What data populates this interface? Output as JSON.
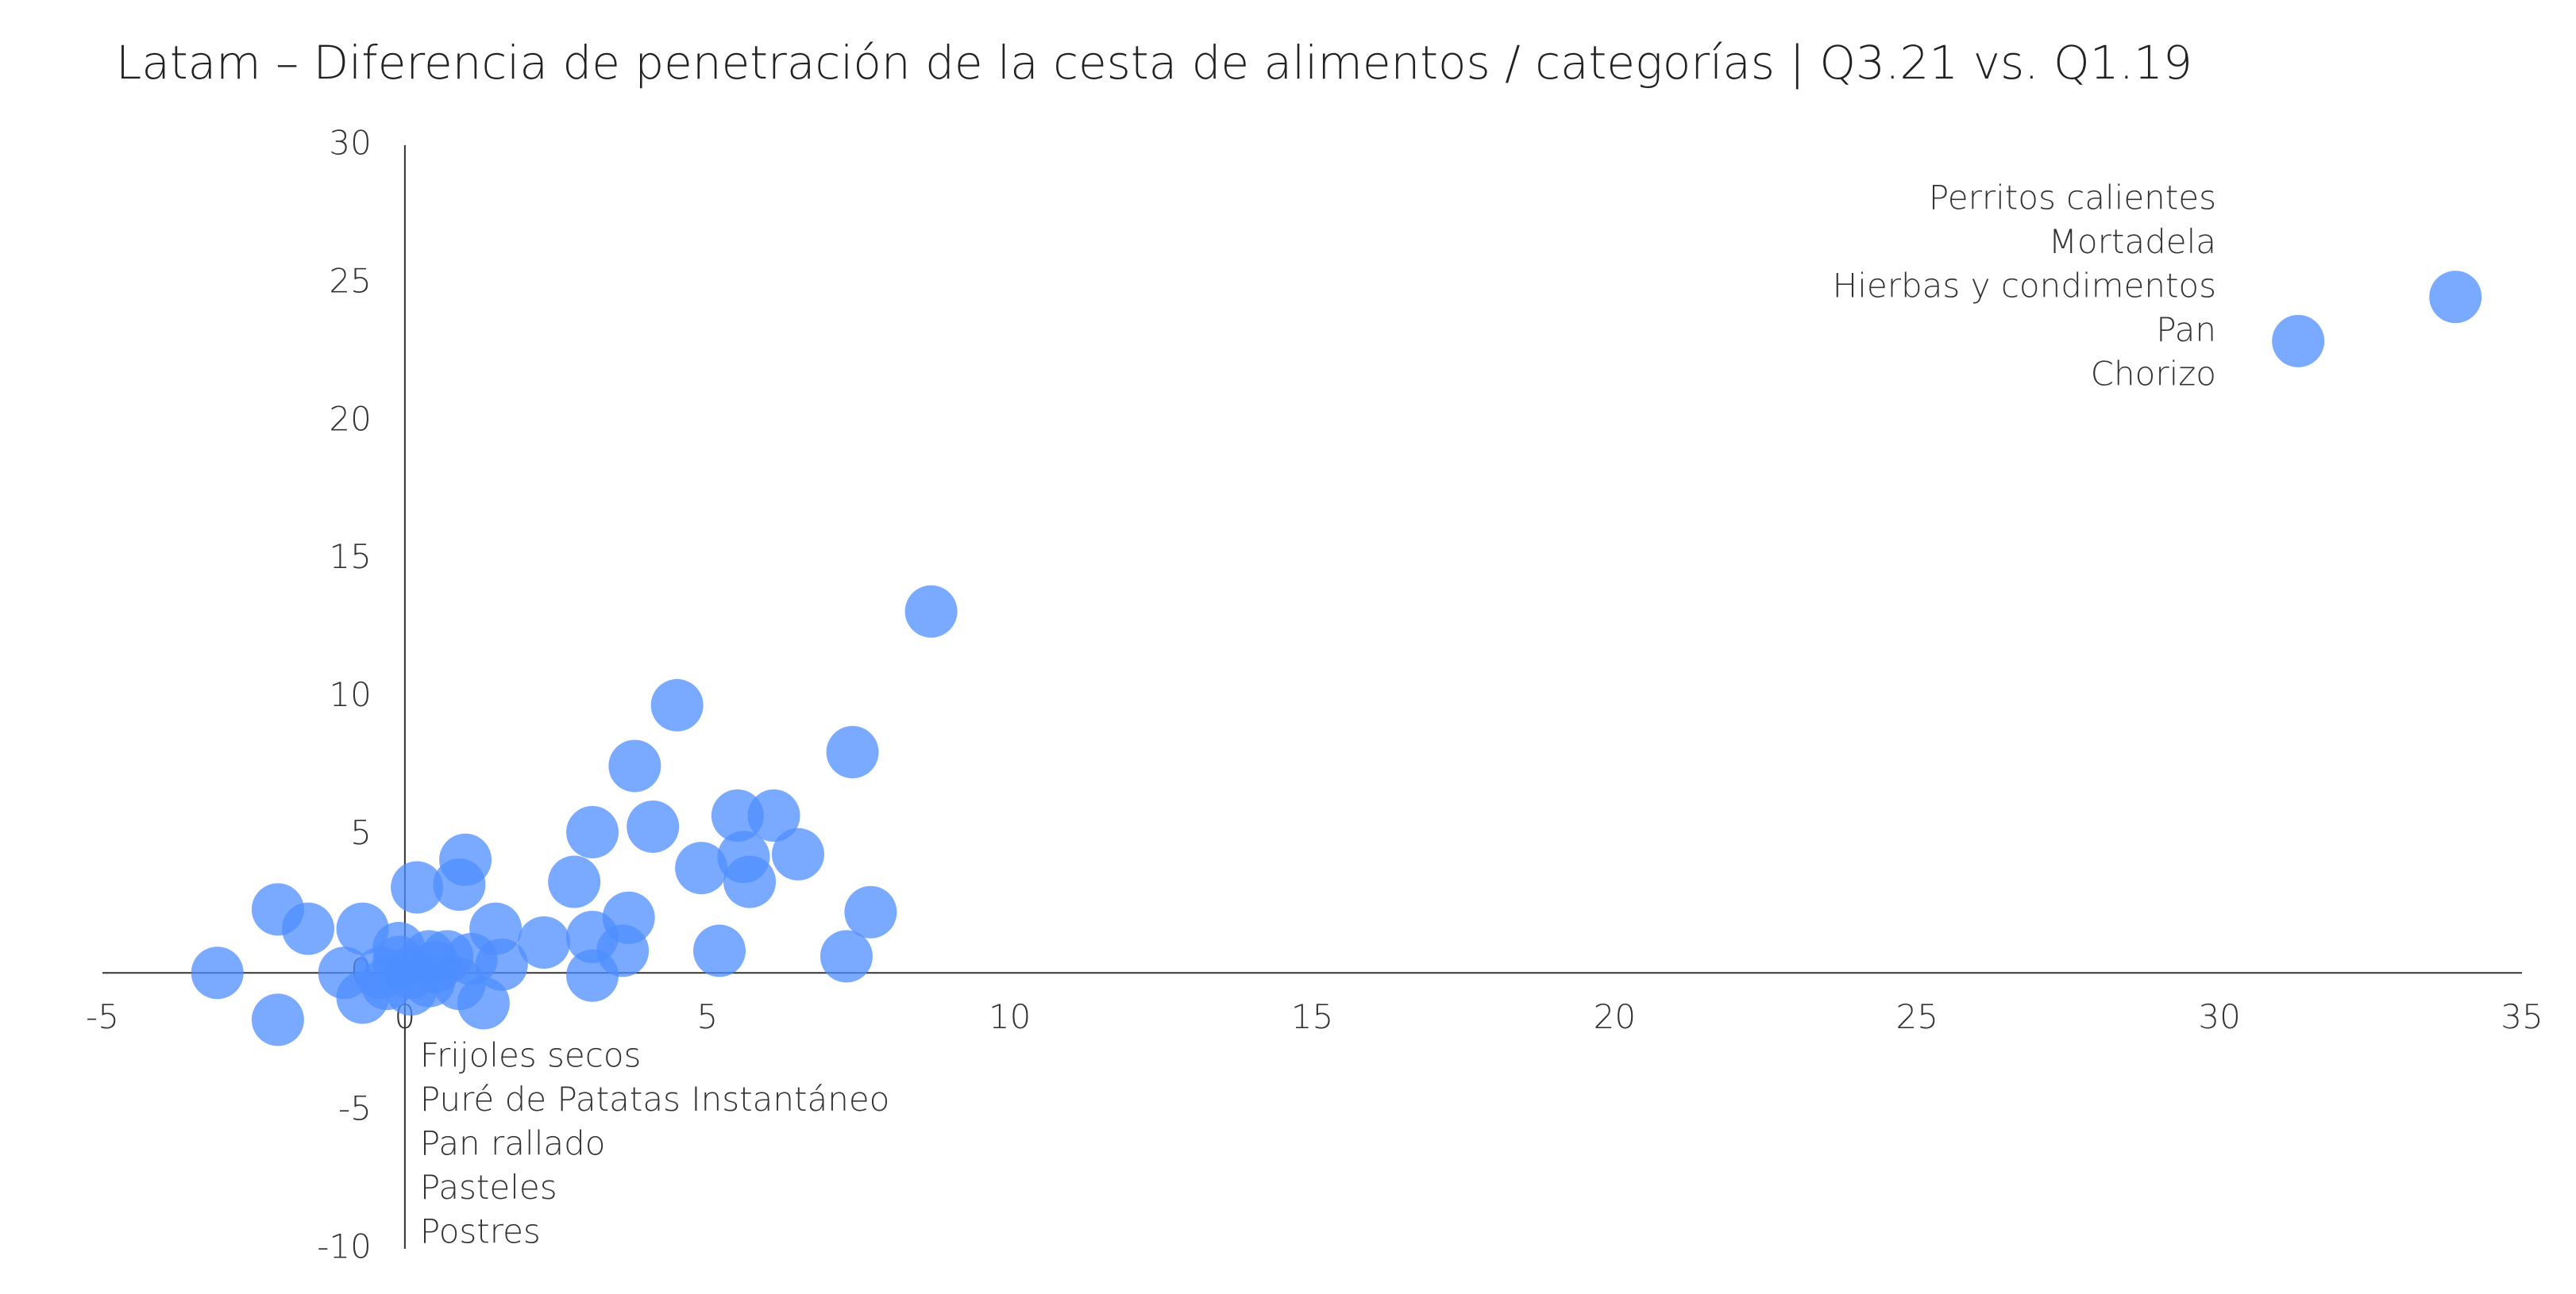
{
  "chart_data": {
    "type": "scatter",
    "title": "Latam – Diferencia de penetración de la cesta de alimentos / categorías | Q3.21 vs. Q1.19",
    "x": [
      -3.1,
      -2.1,
      -2.1,
      -1.6,
      -1.0,
      -0.7,
      -0.7,
      -0.4,
      -0.1,
      0.1,
      0.4,
      0.5,
      0.7,
      1.1,
      0.1,
      -0.3,
      0.4,
      -0.1,
      0.2,
      1.0,
      0.9,
      0.9,
      1.3,
      1.5,
      1.6,
      2.3,
      2.8,
      3.1,
      3.1,
      3.1,
      3.6,
      3.7,
      3.8,
      4.1,
      4.5,
      4.9,
      5.2,
      5.5,
      5.6,
      5.7,
      6.1,
      6.5,
      7.3,
      7.4,
      7.7,
      8.7,
      31.3,
      33.9
    ],
    "y": [
      0,
      2.3,
      -1.7,
      1.6,
      0,
      1.6,
      -0.9,
      0,
      0.4,
      0,
      0.6,
      0.2,
      0.6,
      0.5,
      -0.6,
      -0.4,
      -0.3,
      0.9,
      3.1,
      4.1,
      3.2,
      -0.4,
      -1.1,
      1.6,
      0.3,
      1.1,
      3.3,
      5.1,
      1.3,
      -0.1,
      0.8,
      2.0,
      7.5,
      5.3,
      9.7,
      3.8,
      0.8,
      5.7,
      4.2,
      3.3,
      5.7,
      4.3,
      0.6,
      8.0,
      2.2,
      13.1,
      22.9,
      24.5
    ],
    "color": "#4d8dff",
    "xlim": [
      -5,
      35
    ],
    "xticks": [
      -5,
      0,
      5,
      10,
      15,
      20,
      25,
      30,
      35
    ],
    "ylim": [
      -10,
      30
    ],
    "yticks": [
      -10,
      -5,
      0,
      5,
      10,
      15,
      20,
      25,
      30
    ],
    "grid": false,
    "annotations_top": [
      "Perritos calientes",
      "Mortadela",
      "Hierbas y condimentos",
      "Pan",
      "Chorizo"
    ],
    "annotations_bottom": [
      "Frijoles secos",
      "Puré de Patatas Instantáneo",
      "Pan rallado",
      "Pasteles",
      "Postres"
    ]
  }
}
